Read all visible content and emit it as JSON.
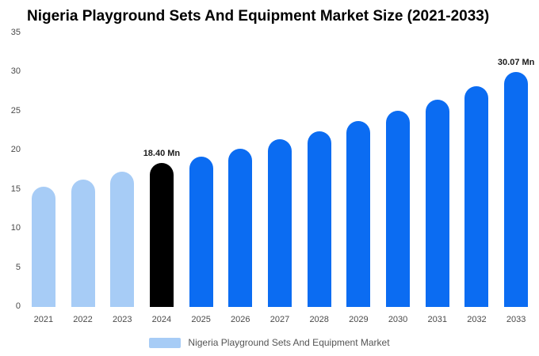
{
  "chart_data": {
    "type": "bar",
    "title": "Nigeria Playground Sets And Equipment Market Size (2021-2033)",
    "categories": [
      "2021",
      "2022",
      "2023",
      "2024",
      "2025",
      "2026",
      "2027",
      "2028",
      "2029",
      "2030",
      "2031",
      "2032",
      "2033"
    ],
    "values": [
      15.4,
      16.3,
      17.3,
      18.4,
      19.2,
      20.2,
      21.4,
      22.5,
      23.8,
      25.1,
      26.5,
      28.2,
      30.07
    ],
    "unit": "Mn",
    "xlabel": "",
    "ylabel": "",
    "ylim": [
      0,
      35
    ],
    "yticks": [
      0,
      5,
      10,
      15,
      20,
      25,
      30,
      35
    ],
    "grid": false,
    "legend_position": "bottom",
    "bar_colors": [
      "#a7ccf6",
      "#a7ccf6",
      "#a7ccf6",
      "#000000",
      "#0b6cf2",
      "#0b6cf2",
      "#0b6cf2",
      "#0b6cf2",
      "#0b6cf2",
      "#0b6cf2",
      "#0b6cf2",
      "#0b6cf2",
      "#0b6cf2"
    ],
    "annotations": [
      {
        "category": "2024",
        "text": "18.40 Mn"
      },
      {
        "category": "2033",
        "text": "30.07 Mn"
      }
    ]
  },
  "legend": {
    "label": "Nigeria Playground Sets And Equipment Market"
  },
  "colors": {
    "light_blue": "#a7ccf6",
    "blue": "#0b6cf2",
    "black": "#000000",
    "axis_text": "#4a4a4a",
    "legend_text": "#555555"
  }
}
